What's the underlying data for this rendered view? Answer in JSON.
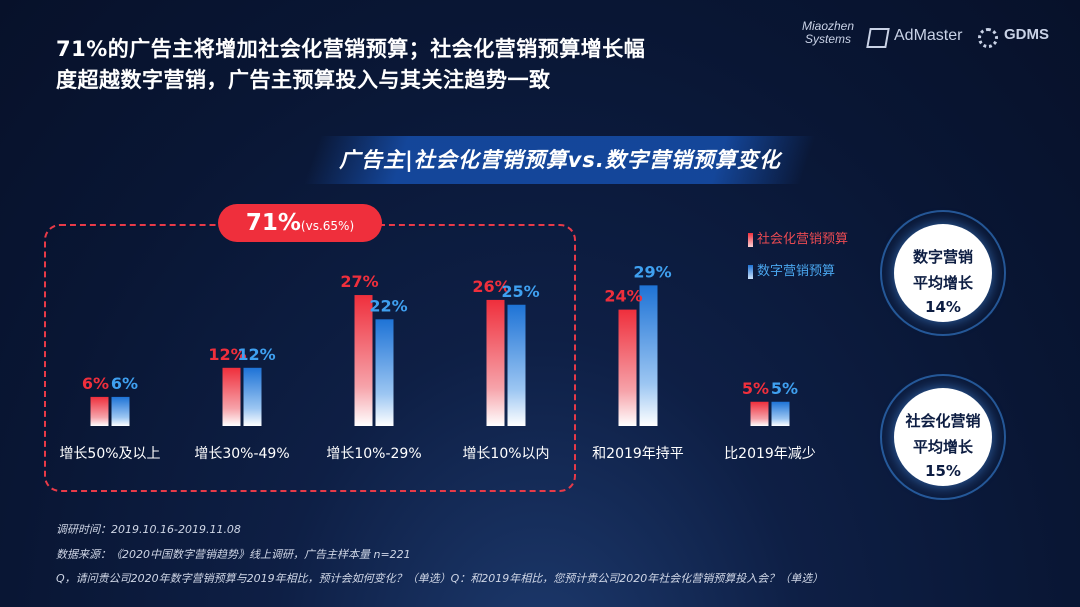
{
  "headline": {
    "line1": "71%的广告主将增加社会化营销预算；社会化营销预算增长幅",
    "line2": "度超越数字营销，广告主预算投入与其关注趋势一致"
  },
  "logos": {
    "miaozhen": "Miaozhen Systems",
    "admaster": "AdMaster",
    "gdms": "GDMS"
  },
  "banner": "广告主|社会化营销预算vs.数字营销预算变化",
  "callout": {
    "value": "71%",
    "compare": "(vs.65%)"
  },
  "legend": {
    "social": "社会化营销预算",
    "digital": "数字营销预算"
  },
  "colors": {
    "social": "#ef2f3c",
    "digital": "#1e73d6",
    "social_label": "#ef2f3c",
    "digital_label": "#3fa0f0"
  },
  "rings": {
    "digital": {
      "line1": "数字营销",
      "line2": "平均增长",
      "value": "14%"
    },
    "social": {
      "line1": "社会化营销",
      "line2": "平均增长",
      "value": "15%"
    }
  },
  "notes": {
    "time": "调研时间：2019.10.16-2019.11.08",
    "source": "数据来源：《2020中国数字营销趋势》线上调研，广告主样本量 n=221",
    "question": "Q，请问贵公司2020年数字营销预算与2019年相比，预计会如何变化？（单选）Q：和2019年相比，您预计贵公司2020年社会化营销预算投入会？（单选）"
  },
  "chart_data": {
    "type": "bar",
    "title": "广告主|社会化营销预算vs.数字营销预算变化",
    "categories": [
      "增长50%及以上",
      "增长30%-49%",
      "增长10%-29%",
      "增长10%以内",
      "和2019年持平",
      "比2019年减少"
    ],
    "series": [
      {
        "name": "社会化营销预算",
        "values": [
          6,
          12,
          27,
          26,
          24,
          5
        ]
      },
      {
        "name": "数字营销预算",
        "values": [
          6,
          12,
          22,
          25,
          29,
          5
        ]
      }
    ],
    "unit": "%",
    "legend": "top-right",
    "grid": false
  }
}
